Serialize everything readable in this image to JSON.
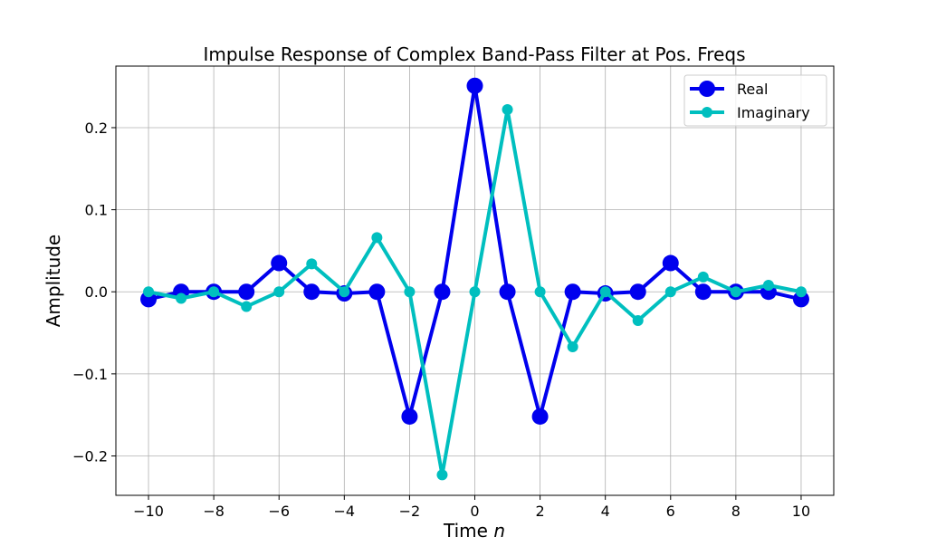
{
  "chart_data": {
    "type": "line",
    "title": "Impulse Response of Complex Band-Pass Filter at Pos. Freqs",
    "xlabel_prefix": "Time ",
    "xlabel_var": "n",
    "ylabel": "Amplitude",
    "xlim": [
      -11,
      11
    ],
    "ylim": [
      -0.248,
      0.275
    ],
    "grid": true,
    "legend_position": "upper right",
    "xticks": [
      -10,
      -8,
      -6,
      -4,
      -2,
      0,
      2,
      4,
      6,
      8,
      10
    ],
    "xtick_labels": [
      "−10",
      "−8",
      "−6",
      "−4",
      "−2",
      "0",
      "2",
      "4",
      "6",
      "8",
      "10"
    ],
    "yticks": [
      -0.2,
      -0.1,
      0.0,
      0.1,
      0.2
    ],
    "ytick_labels": [
      "−0.2",
      "−0.1",
      "0.0",
      "0.1",
      "0.2"
    ],
    "x": [
      -10,
      -9,
      -8,
      -7,
      -6,
      -5,
      -4,
      -3,
      -2,
      -1,
      0,
      1,
      2,
      3,
      4,
      5,
      6,
      7,
      8,
      9,
      10
    ],
    "series": [
      {
        "name": "Real",
        "color": "#0000ee",
        "values": [
          -0.009,
          0,
          0,
          0,
          0.035,
          0,
          -0.002,
          0,
          -0.152,
          0,
          0.251,
          0,
          -0.152,
          0,
          -0.002,
          0,
          0.035,
          0,
          0,
          0,
          -0.009
        ]
      },
      {
        "name": "Imaginary",
        "color": "#00bfbf",
        "values": [
          0,
          -0.008,
          0,
          -0.018,
          0,
          0.034,
          0,
          0.066,
          0,
          -0.223,
          0,
          0.222,
          0,
          -0.067,
          0,
          -0.035,
          0,
          0.018,
          0,
          0.008,
          0
        ]
      }
    ]
  }
}
